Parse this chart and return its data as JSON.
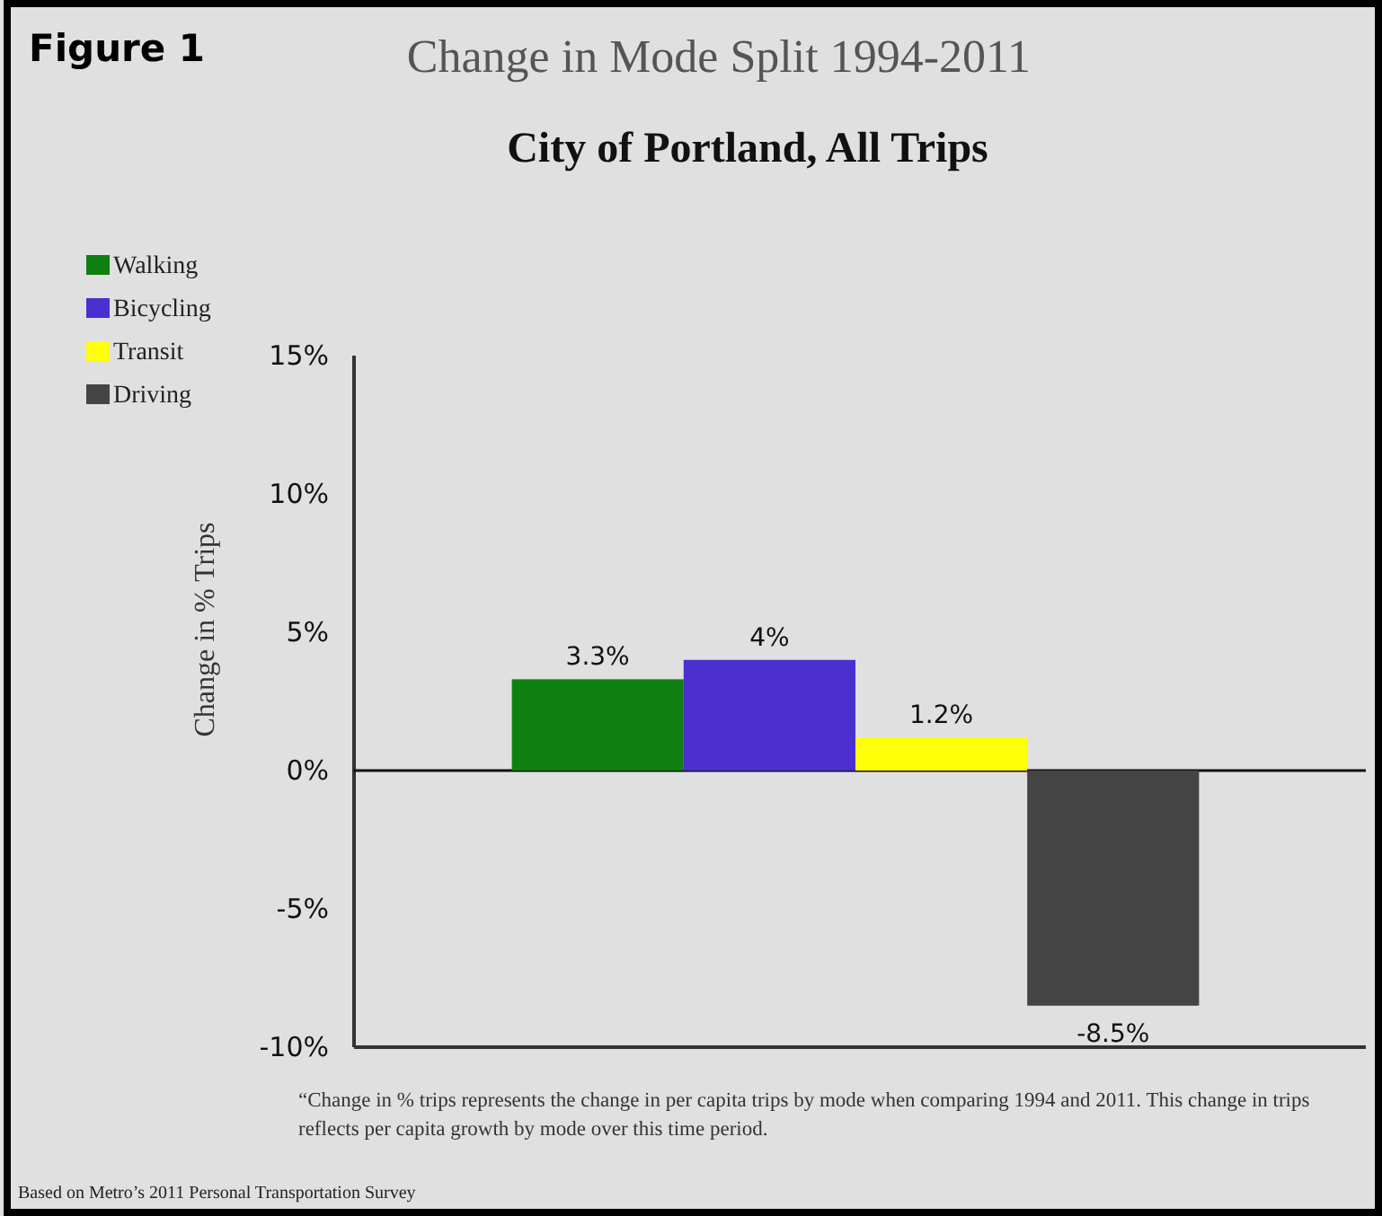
{
  "chart_data": {
    "type": "bar",
    "title": "Change in Mode Split 1994-2011",
    "subtitle": "City of Portland, All Trips",
    "ylabel": "Change in % Trips",
    "categories": [
      null
    ],
    "series": [
      {
        "name": "Walking",
        "color": "#0f7f12",
        "values": [
          3.3
        ],
        "value_labels": [
          "3.3%"
        ]
      },
      {
        "name": "Bicycling",
        "color": "#4b2fcf",
        "values": [
          4
        ],
        "value_labels": [
          "4%"
        ]
      },
      {
        "name": "Transit",
        "color": "#ffff0a",
        "values": [
          1.2
        ],
        "value_labels": [
          "1.2%"
        ]
      },
      {
        "name": "Driving",
        "color": "#444444",
        "values": [
          -8.5
        ],
        "value_labels": [
          "-8.5%"
        ]
      }
    ],
    "ylim": [
      -10,
      15
    ],
    "yticks": [
      {
        "value": -10,
        "label": "-10%"
      },
      {
        "value": -5,
        "label": "-5%"
      },
      {
        "value": 0,
        "label": "0%"
      },
      {
        "value": 5,
        "label": "5%"
      },
      {
        "value": 10,
        "label": "10%"
      },
      {
        "value": 15,
        "label": "15%"
      }
    ],
    "ref_lines": [
      {
        "axis": "y",
        "value": 0,
        "color": "#111111"
      }
    ],
    "tick_labels": "y",
    "legend": "top left",
    "annotations": [
      "Figure 1",
      "“Change in % trips represents the change in per capita trips by mode when comparing 1994 and 2011. This change in trips reflects per capita growth by mode over this time period.",
      "Based on Metro’s 2011 Personal Transportation Survey"
    ]
  }
}
